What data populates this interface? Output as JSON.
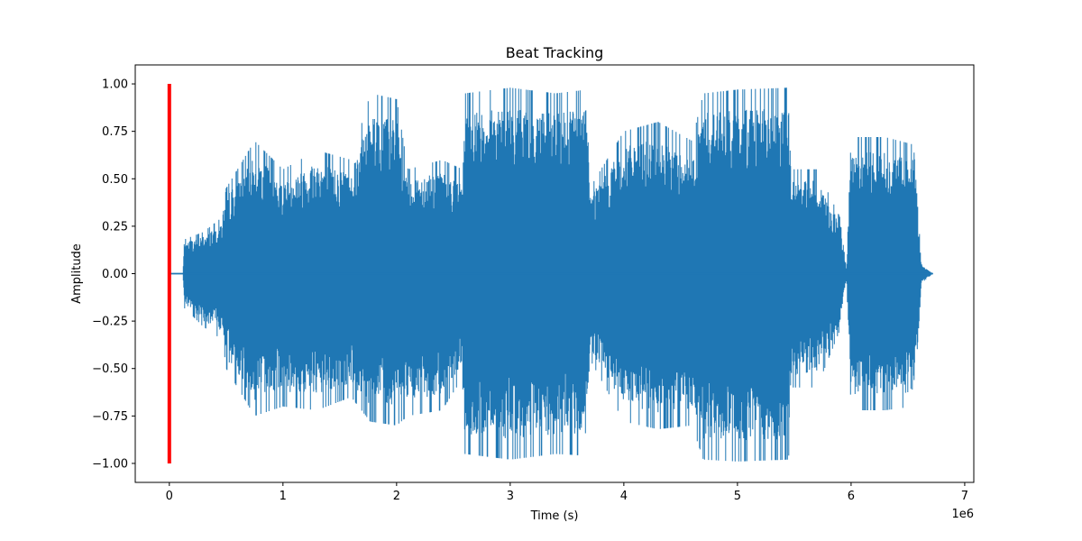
{
  "chart_data": {
    "type": "line",
    "title": "Beat Tracking",
    "xlabel": "Time (s)",
    "ylabel": "Amplitude",
    "x_offset_label": "1e6",
    "xlim": [
      -0.3,
      7.08
    ],
    "ylim": [
      -1.1,
      1.1
    ],
    "grid": false,
    "x_ticks": [
      {
        "value": 0,
        "label": "0"
      },
      {
        "value": 1,
        "label": "1"
      },
      {
        "value": 2,
        "label": "2"
      },
      {
        "value": 3,
        "label": "3"
      },
      {
        "value": 4,
        "label": "4"
      },
      {
        "value": 5,
        "label": "5"
      },
      {
        "value": 6,
        "label": "6"
      },
      {
        "value": 7,
        "label": "7"
      }
    ],
    "y_ticks": [
      {
        "value": 1.0,
        "label": "1.00"
      },
      {
        "value": 0.75,
        "label": "0.75"
      },
      {
        "value": 0.5,
        "label": "0.50"
      },
      {
        "value": 0.25,
        "label": "0.25"
      },
      {
        "value": 0.0,
        "label": "0.00"
      },
      {
        "value": -0.25,
        "label": "−0.25"
      },
      {
        "value": -0.5,
        "label": "−0.50"
      },
      {
        "value": -0.75,
        "label": "−0.75"
      },
      {
        "value": -1.0,
        "label": "−1.00"
      }
    ],
    "waveform": {
      "color": "#1f77b4",
      "x_start": 0.0,
      "x_end": 6.72,
      "envelope": [
        {
          "x": 0.0,
          "upper": 0.0,
          "lower": 0.0
        },
        {
          "x": 0.12,
          "upper": 0.0,
          "lower": 0.0
        },
        {
          "x": 0.13,
          "upper": 0.18,
          "lower": -0.18
        },
        {
          "x": 0.3,
          "upper": 0.22,
          "lower": -0.28
        },
        {
          "x": 0.47,
          "upper": 0.3,
          "lower": -0.35
        },
        {
          "x": 0.5,
          "upper": 0.45,
          "lower": -0.5
        },
        {
          "x": 0.75,
          "upper": 0.7,
          "lower": -0.75
        },
        {
          "x": 1.0,
          "upper": 0.55,
          "lower": -0.7
        },
        {
          "x": 1.3,
          "upper": 0.65,
          "lower": -0.72
        },
        {
          "x": 1.6,
          "upper": 0.6,
          "lower": -0.65
        },
        {
          "x": 1.77,
          "upper": 0.95,
          "lower": -0.78
        },
        {
          "x": 2.0,
          "upper": 0.92,
          "lower": -0.8
        },
        {
          "x": 2.1,
          "upper": 0.55,
          "lower": -0.75
        },
        {
          "x": 2.4,
          "upper": 0.6,
          "lower": -0.72
        },
        {
          "x": 2.58,
          "upper": 0.55,
          "lower": -0.55
        },
        {
          "x": 2.6,
          "upper": 0.95,
          "lower": -0.95
        },
        {
          "x": 3.0,
          "upper": 0.98,
          "lower": -0.98
        },
        {
          "x": 3.4,
          "upper": 0.95,
          "lower": -0.95
        },
        {
          "x": 3.68,
          "upper": 0.97,
          "lower": -0.96
        },
        {
          "x": 3.7,
          "upper": 0.45,
          "lower": -0.45
        },
        {
          "x": 4.0,
          "upper": 0.75,
          "lower": -0.78
        },
        {
          "x": 4.3,
          "upper": 0.8,
          "lower": -0.82
        },
        {
          "x": 4.6,
          "upper": 0.7,
          "lower": -0.8
        },
        {
          "x": 4.7,
          "upper": 0.95,
          "lower": -0.98
        },
        {
          "x": 5.0,
          "upper": 0.97,
          "lower": -0.99
        },
        {
          "x": 5.45,
          "upper": 0.98,
          "lower": -0.98
        },
        {
          "x": 5.48,
          "upper": 0.55,
          "lower": -0.6
        },
        {
          "x": 5.7,
          "upper": 0.55,
          "lower": -0.6
        },
        {
          "x": 5.9,
          "upper": 0.3,
          "lower": -0.3
        },
        {
          "x": 5.96,
          "upper": 0.02,
          "lower": -0.02
        },
        {
          "x": 6.0,
          "upper": 0.72,
          "lower": -0.72
        },
        {
          "x": 6.3,
          "upper": 0.72,
          "lower": -0.72
        },
        {
          "x": 6.55,
          "upper": 0.68,
          "lower": -0.7
        },
        {
          "x": 6.62,
          "upper": 0.05,
          "lower": -0.05
        },
        {
          "x": 6.72,
          "upper": 0.0,
          "lower": 0.0
        }
      ]
    },
    "beat_markers": {
      "color": "#ff0000",
      "x": [
        0.0
      ],
      "ymin": -1.0,
      "ymax": 1.0
    }
  }
}
